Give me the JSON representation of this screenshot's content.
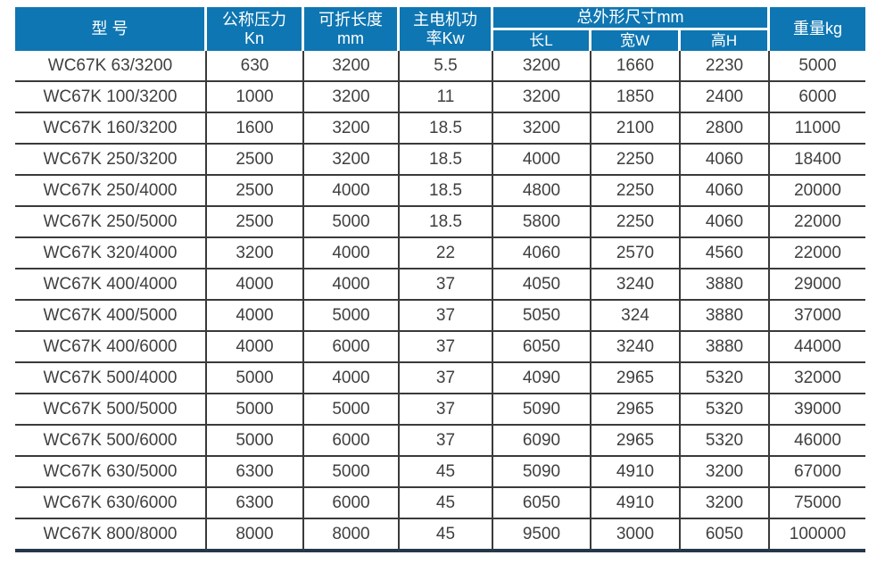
{
  "colors": {
    "header_bg": "#0e76b2",
    "header_text": "#ffffff",
    "body_text": "#3f3f3f",
    "grid_line": "#3a3a3a",
    "bottom_rule": "#24374a",
    "page_bg": "#ffffff"
  },
  "chart_data": {
    "type": "table",
    "title": "",
    "header": {
      "model": "型 号",
      "pressure": [
        "公称压力",
        "Kn"
      ],
      "fold_length": [
        "可折长度",
        "mm"
      ],
      "motor_power": [
        "主电机功",
        "率Kw"
      ],
      "dimensions_group": "总外形尺寸mm",
      "dim_length": "长L",
      "dim_width": "宽W",
      "dim_height": "高H",
      "weight": "重量kg"
    },
    "columns_flat": [
      "型 号",
      "公称压力 Kn",
      "可折长度 mm",
      "主电机功率Kw",
      "总外形尺寸mm 长L",
      "总外形尺寸mm 宽W",
      "总外形尺寸mm 高H",
      "重量kg"
    ],
    "rows": [
      [
        "WC67K 63/3200",
        "630",
        "3200",
        "5.5",
        "3200",
        "1660",
        "2230",
        "5000"
      ],
      [
        "WC67K 100/3200",
        "1000",
        "3200",
        "11",
        "3200",
        "1850",
        "2400",
        "6000"
      ],
      [
        "WC67K 160/3200",
        "1600",
        "3200",
        "18.5",
        "3200",
        "2100",
        "2800",
        "11000"
      ],
      [
        "WC67K 250/3200",
        "2500",
        "3200",
        "18.5",
        "4000",
        "2250",
        "4060",
        "18400"
      ],
      [
        "WC67K 250/4000",
        "2500",
        "4000",
        "18.5",
        "4800",
        "2250",
        "4060",
        "20000"
      ],
      [
        "WC67K 250/5000",
        "2500",
        "5000",
        "18.5",
        "5800",
        "2250",
        "4060",
        "22000"
      ],
      [
        "WC67K 320/4000",
        "3200",
        "4000",
        "22",
        "4060",
        "2570",
        "4560",
        "22000"
      ],
      [
        "WC67K 400/4000",
        "4000",
        "4000",
        "37",
        "4050",
        "3240",
        "3880",
        "29000"
      ],
      [
        "WC67K 400/5000",
        "4000",
        "5000",
        "37",
        "5050",
        "324",
        "3880",
        "37000"
      ],
      [
        "WC67K 400/6000",
        "4000",
        "6000",
        "37",
        "6050",
        "3240",
        "3880",
        "44000"
      ],
      [
        "WC67K 500/4000",
        "5000",
        "4000",
        "37",
        "4090",
        "2965",
        "5320",
        "32000"
      ],
      [
        "WC67K 500/5000",
        "5000",
        "5000",
        "37",
        "5090",
        "2965",
        "5320",
        "39000"
      ],
      [
        "WC67K 500/6000",
        "5000",
        "6000",
        "37",
        "6090",
        "2965",
        "5320",
        "46000"
      ],
      [
        "WC67K 630/5000",
        "6300",
        "5000",
        "45",
        "5090",
        "4910",
        "3200",
        "67000"
      ],
      [
        "WC67K 630/6000",
        "6300",
        "6000",
        "45",
        "6050",
        "4910",
        "3200",
        "75000"
      ],
      [
        "WC67K 800/8000",
        "8000",
        "8000",
        "45",
        "9500",
        "3000",
        "6050",
        "100000"
      ]
    ]
  }
}
